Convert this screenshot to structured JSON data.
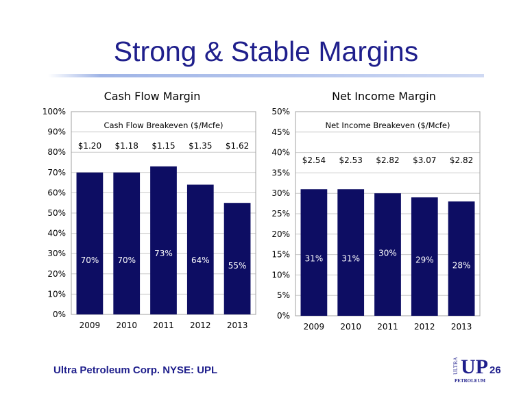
{
  "slide": {
    "title": "Strong & Stable Margins",
    "footer": "Ultra Petroleum Corp. NYSE: UPL",
    "page_number": "26",
    "logo": {
      "text_ultra": "ULTRA",
      "text_up": "UP",
      "text_petroleum": "PETROLEUM"
    }
  },
  "colors": {
    "bar": "#0d0d63",
    "title": "#1f1f8c",
    "bar_label": "#ffffff"
  },
  "chart_data": [
    {
      "type": "bar",
      "title": "Cash Flow Margin",
      "categories": [
        "2009",
        "2010",
        "2011",
        "2012",
        "2013"
      ],
      "values": [
        70,
        70,
        73,
        64,
        55
      ],
      "data_labels": [
        "70%",
        "70%",
        "73%",
        "64%",
        "55%"
      ],
      "y_ticks": [
        "0%",
        "10%",
        "20%",
        "30%",
        "40%",
        "50%",
        "60%",
        "70%",
        "80%",
        "90%",
        "100%"
      ],
      "ylim": [
        0,
        100
      ],
      "grid": true,
      "annotation": "Cash Flow Breakeven ($/Mcfe)",
      "breakeven_values": [
        "$1.20",
        "$1.18",
        "$1.15",
        "$1.35",
        "$1.62"
      ]
    },
    {
      "type": "bar",
      "title": "Net Income Margin",
      "categories": [
        "2009",
        "2010",
        "2011",
        "2012",
        "2013"
      ],
      "values": [
        31,
        31,
        30,
        29,
        28
      ],
      "data_labels": [
        "31%",
        "31%",
        "30%",
        "29%",
        "28%"
      ],
      "y_ticks": [
        "0%",
        "5%",
        "10%",
        "15%",
        "20%",
        "25%",
        "30%",
        "35%",
        "40%",
        "45%",
        "50%"
      ],
      "ylim": [
        0,
        50
      ],
      "grid": true,
      "annotation": "Net Income Breakeven ($/Mcfe)",
      "breakeven_values": [
        "$2.54",
        "$2.53",
        "$2.82",
        "$3.07",
        "$2.82"
      ]
    }
  ]
}
